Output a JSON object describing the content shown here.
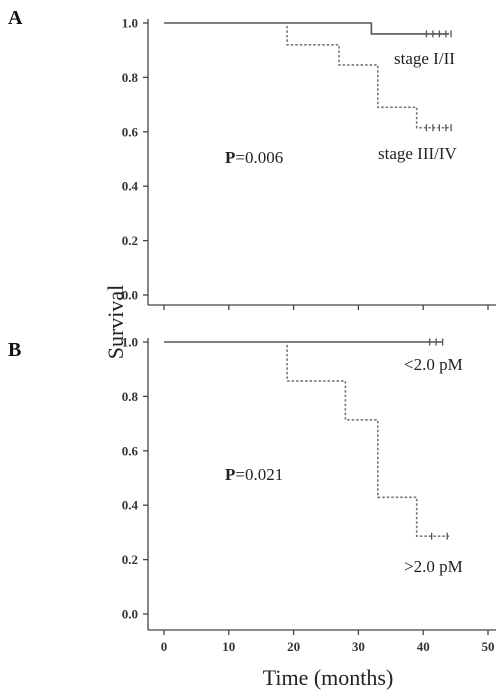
{
  "chart_data": [
    {
      "type": "line",
      "subtype": "kaplan-meier",
      "panel_label": "A",
      "ylim": [
        0,
        1.0
      ],
      "xlim": [
        0,
        50
      ],
      "yticks": [
        "0.0",
        "0.2",
        "0.4",
        "0.6",
        "0.8",
        "1.0"
      ],
      "p_value": {
        "prefix": "P",
        "text": "=0.006"
      },
      "series": [
        {
          "name": "stage I/II",
          "style": "solid",
          "steps": [
            [
              0,
              1.0
            ],
            [
              32,
              1.0
            ],
            [
              32,
              0.96
            ],
            [
              44,
              0.96
            ]
          ],
          "censored": [
            40.5,
            41.5,
            42.5,
            43.5,
            44.3
          ]
        },
        {
          "name": "stage III/IV",
          "style": "dotted",
          "steps": [
            [
              0,
              1.0
            ],
            [
              19,
              1.0
            ],
            [
              19,
              0.92
            ],
            [
              27,
              0.92
            ],
            [
              27,
              0.846
            ],
            [
              33,
              0.846
            ],
            [
              33,
              0.69
            ],
            [
              39,
              0.69
            ],
            [
              39,
              0.615
            ],
            [
              44,
              0.615
            ]
          ],
          "censored": [
            40.5,
            41.5,
            42.5,
            43.5,
            44.3
          ]
        }
      ]
    },
    {
      "type": "line",
      "subtype": "kaplan-meier",
      "panel_label": "B",
      "ylim": [
        0,
        1.0
      ],
      "xlim": [
        0,
        50
      ],
      "yticks": [
        "0.0",
        "0.2",
        "0.4",
        "0.6",
        "0.8",
        "1.0"
      ],
      "xticks": [
        "0",
        "10",
        "20",
        "30",
        "40",
        "50"
      ],
      "p_value": {
        "prefix": "P",
        "text": "=0.021"
      },
      "series": [
        {
          "name": "<2.0 pM",
          "style": "solid",
          "steps": [
            [
              0,
              1.0
            ],
            [
              43,
              1.0
            ]
          ],
          "censored": [
            41,
            42,
            43
          ]
        },
        {
          "name": ">2.0 pM",
          "style": "dotted",
          "steps": [
            [
              0,
              1.0
            ],
            [
              19,
              1.0
            ],
            [
              19,
              0.857
            ],
            [
              28,
              0.857
            ],
            [
              28,
              0.714
            ],
            [
              33,
              0.714
            ],
            [
              33,
              0.429
            ],
            [
              39,
              0.429
            ],
            [
              39,
              0.286
            ],
            [
              44,
              0.286
            ]
          ],
          "censored": [
            41.3,
            43.7
          ]
        }
      ]
    }
  ],
  "ylabel": "Survival",
  "xlabel": "Time (months)"
}
